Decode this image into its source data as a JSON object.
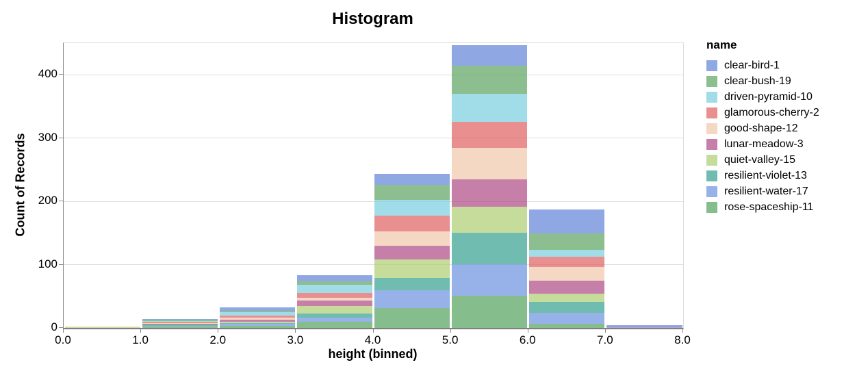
{
  "chart_data": {
    "type": "bar",
    "stacked": true,
    "title": "Histogram",
    "xlabel": "height (binned)",
    "ylabel": "Count of Records",
    "legend_title": "name",
    "legend_position": "right",
    "grid": true,
    "xlim": [
      0,
      8
    ],
    "ylim": [
      0,
      450
    ],
    "bin_edges": [
      0,
      1,
      2,
      3,
      4,
      5,
      6,
      7,
      8
    ],
    "x_tick_labels": [
      "0.0",
      "1.0",
      "2.0",
      "3.0",
      "4.0",
      "5.0",
      "6.0",
      "7.0",
      "8.0"
    ],
    "y_ticks": [
      0,
      100,
      200,
      300,
      400
    ],
    "bar_opacity": 0.7,
    "stack_order": "first-series-on-top",
    "axis_color": "#888888",
    "grid_color": "#dddddd",
    "series": [
      {
        "name": "clear-bird-1",
        "color": "#5F83D8",
        "values": [
          0,
          1,
          5,
          9,
          17,
          33,
          38,
          2
        ]
      },
      {
        "name": "clear-bush-19",
        "color": "#5BA260",
        "values": [
          0,
          2,
          2,
          6,
          24,
          44,
          26,
          0
        ]
      },
      {
        "name": "driven-pyramid-10",
        "color": "#77CEDE",
        "values": [
          0,
          1,
          5,
          13,
          25,
          44,
          11,
          0
        ]
      },
      {
        "name": "glamorous-cherry-2",
        "color": "#E06060",
        "values": [
          0,
          2,
          4,
          7,
          24,
          42,
          16,
          0
        ]
      },
      {
        "name": "good-shape-12",
        "color": "#F0C7A9",
        "values": [
          1,
          1,
          3,
          5,
          23,
          49,
          21,
          0
        ]
      },
      {
        "name": "lunar-meadow-3",
        "color": "#AC4883",
        "values": [
          0,
          1,
          3,
          8,
          22,
          43,
          21,
          1
        ]
      },
      {
        "name": "quiet-valley-15",
        "color": "#ACCD70",
        "values": [
          1,
          1,
          2,
          12,
          29,
          42,
          13,
          0
        ]
      },
      {
        "name": "resilient-violet-13",
        "color": "#359F8E",
        "values": [
          0,
          2,
          2,
          7,
          20,
          49,
          17,
          0
        ]
      },
      {
        "name": "resilient-water-17",
        "color": "#6991DE",
        "values": [
          0,
          1,
          3,
          6,
          28,
          50,
          17,
          1
        ]
      },
      {
        "name": "rose-spaceship-11",
        "color": "#53A15C",
        "values": [
          0,
          2,
          3,
          10,
          31,
          51,
          7,
          0
        ]
      }
    ],
    "bin_totals": [
      2,
      14,
      32,
      83,
      243,
      447,
      187,
      4
    ]
  }
}
